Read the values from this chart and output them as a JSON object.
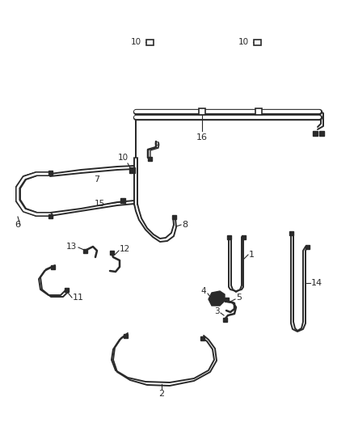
{
  "background_color": "#ffffff",
  "line_color": "#2a2a2a",
  "fig_width": 4.38,
  "fig_height": 5.33,
  "dpi": 100,
  "lw_main": 1.6,
  "lw_double": 1.3
}
